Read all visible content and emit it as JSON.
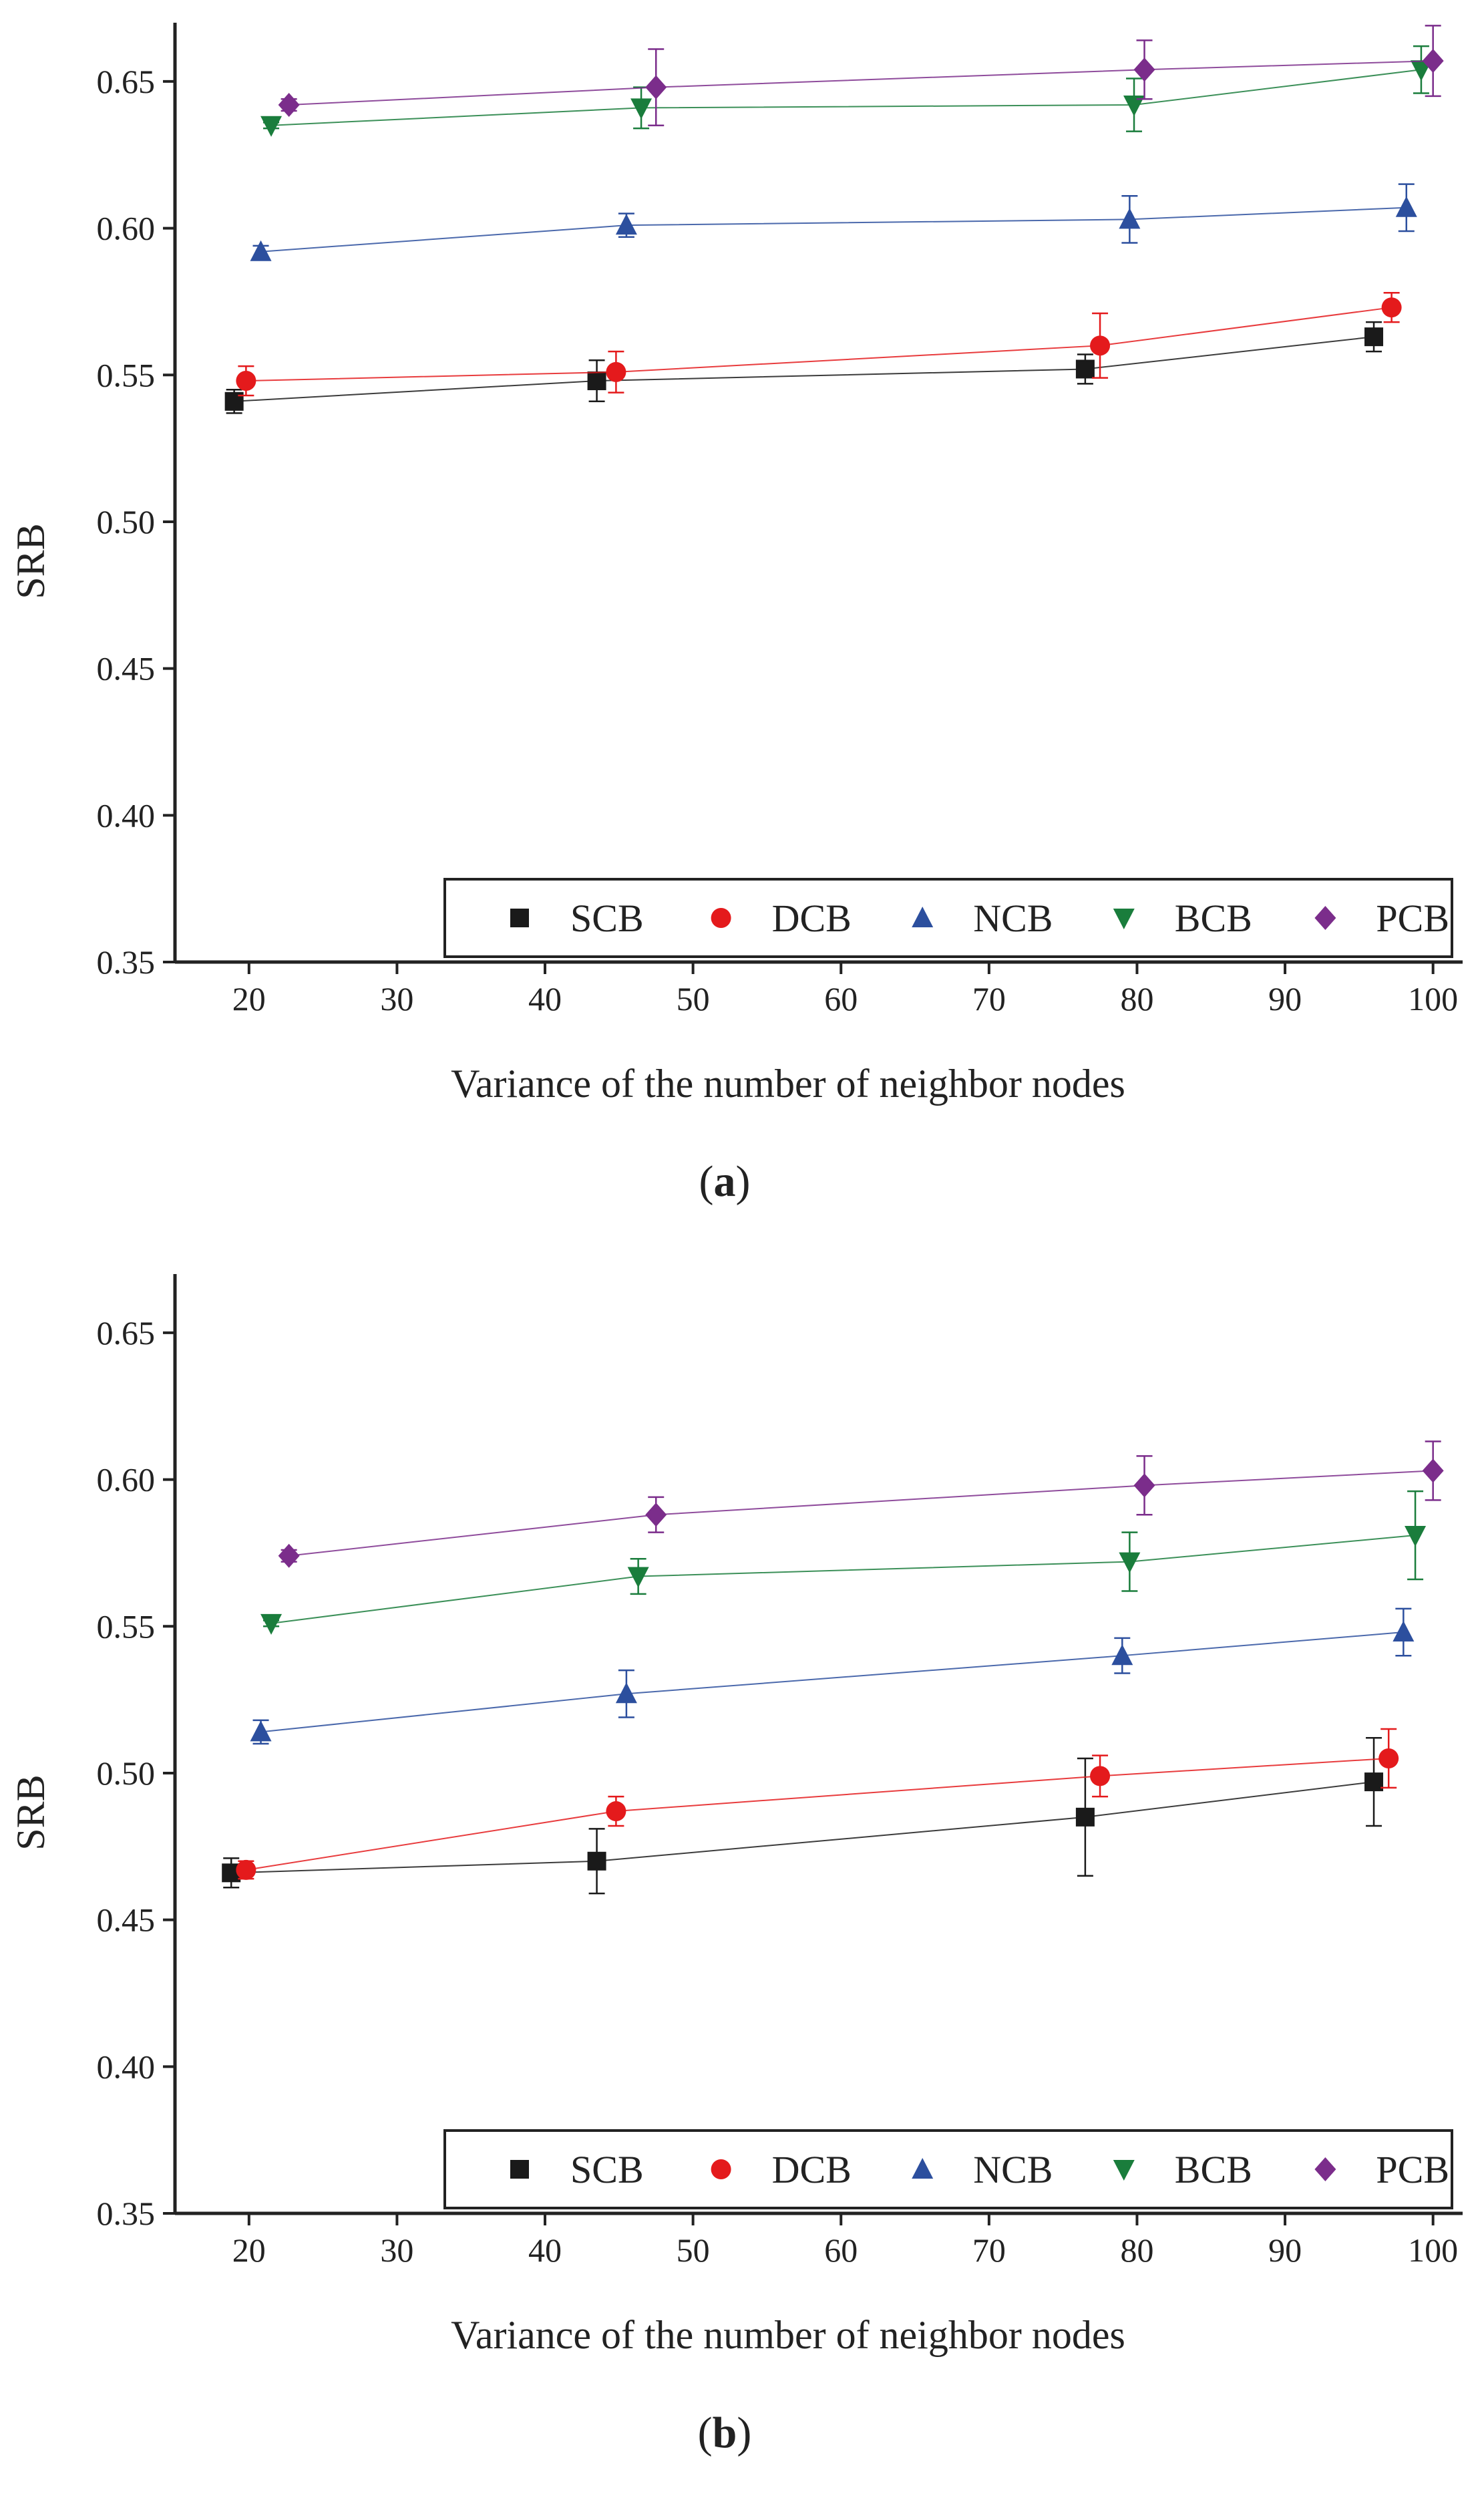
{
  "chart_data": [
    {
      "type": "line",
      "panel_label": "a",
      "xlabel": "Variance of the number of neighbor nodes",
      "ylabel": "SRB",
      "xlim": [
        15,
        102
      ],
      "ylim": [
        0.35,
        0.67
      ],
      "xticks": [
        20,
        30,
        40,
        50,
        60,
        70,
        80,
        90,
        100
      ],
      "yticks": [
        0.35,
        0.4,
        0.45,
        0.5,
        0.55,
        0.6,
        0.65
      ],
      "ytick_labels": [
        "0.35",
        "0.40",
        "0.45",
        "0.50",
        "0.55",
        "0.60",
        "0.65"
      ],
      "error_bars": true,
      "legend_position": "bottom-right",
      "series": [
        {
          "name": "SCB",
          "marker": "square",
          "color": "#1a1a1a",
          "x": [
            19,
            43.5,
            76.5,
            96
          ],
          "y": [
            0.541,
            0.548,
            0.552,
            0.563
          ],
          "err": [
            0.004,
            0.007,
            0.005,
            0.005
          ]
        },
        {
          "name": "DCB",
          "marker": "circle",
          "color": "#e41a1c",
          "x": [
            19.8,
            44.8,
            77.5,
            97.2
          ],
          "y": [
            0.548,
            0.551,
            0.56,
            0.573
          ],
          "err": [
            0.005,
            0.007,
            0.011,
            0.005
          ]
        },
        {
          "name": "NCB",
          "marker": "triangle-up",
          "color": "#2c4f9e",
          "x": [
            20.8,
            45.5,
            79.5,
            98.2
          ],
          "y": [
            0.592,
            0.601,
            0.603,
            0.607
          ],
          "err": [
            0.002,
            0.004,
            0.008,
            0.008
          ]
        },
        {
          "name": "BCB",
          "marker": "triangle-down",
          "color": "#1a7d3c",
          "x": [
            21.5,
            46.5,
            79.8,
            99.2
          ],
          "y": [
            0.635,
            0.641,
            0.642,
            0.654
          ],
          "err": [
            0.001,
            0.007,
            0.009,
            0.008
          ]
        },
        {
          "name": "PCB",
          "marker": "diamond",
          "color": "#7b2d8b",
          "x": [
            22.7,
            47.5,
            80.5,
            100
          ],
          "y": [
            0.642,
            0.648,
            0.654,
            0.657
          ],
          "err": [
            0.002,
            0.013,
            0.01,
            0.012
          ]
        }
      ]
    },
    {
      "type": "line",
      "panel_label": "b",
      "xlabel": "Variance of the number of neighbor nodes",
      "ylabel": "SRB",
      "xlim": [
        15,
        102
      ],
      "ylim": [
        0.35,
        0.67
      ],
      "xticks": [
        20,
        30,
        40,
        50,
        60,
        70,
        80,
        90,
        100
      ],
      "yticks": [
        0.35,
        0.4,
        0.45,
        0.5,
        0.55,
        0.6,
        0.65
      ],
      "ytick_labels": [
        "0.35",
        "0.40",
        "0.45",
        "0.50",
        "0.55",
        "0.60",
        "0.65"
      ],
      "error_bars": true,
      "legend_position": "bottom-right",
      "series": [
        {
          "name": "SCB",
          "marker": "square",
          "color": "#1a1a1a",
          "x": [
            18.8,
            43.5,
            76.5,
            96
          ],
          "y": [
            0.466,
            0.47,
            0.485,
            0.497
          ],
          "err": [
            0.005,
            0.011,
            0.02,
            0.015
          ]
        },
        {
          "name": "DCB",
          "marker": "circle",
          "color": "#e41a1c",
          "x": [
            19.8,
            44.8,
            77.5,
            97
          ],
          "y": [
            0.467,
            0.487,
            0.499,
            0.505
          ],
          "err": [
            0.003,
            0.005,
            0.007,
            0.01
          ]
        },
        {
          "name": "NCB",
          "marker": "triangle-up",
          "color": "#2c4f9e",
          "x": [
            20.8,
            45.5,
            79,
            98
          ],
          "y": [
            0.514,
            0.527,
            0.54,
            0.548
          ],
          "err": [
            0.004,
            0.008,
            0.006,
            0.008
          ]
        },
        {
          "name": "BCB",
          "marker": "triangle-down",
          "color": "#1a7d3c",
          "x": [
            21.5,
            46.3,
            79.5,
            98.8
          ],
          "y": [
            0.551,
            0.567,
            0.572,
            0.581
          ],
          "err": [
            0.001,
            0.006,
            0.01,
            0.015
          ]
        },
        {
          "name": "PCB",
          "marker": "diamond",
          "color": "#7b2d8b",
          "x": [
            22.7,
            47.5,
            80.5,
            100
          ],
          "y": [
            0.574,
            0.588,
            0.598,
            0.603
          ],
          "err": [
            0.002,
            0.006,
            0.01,
            0.01
          ]
        }
      ]
    }
  ]
}
